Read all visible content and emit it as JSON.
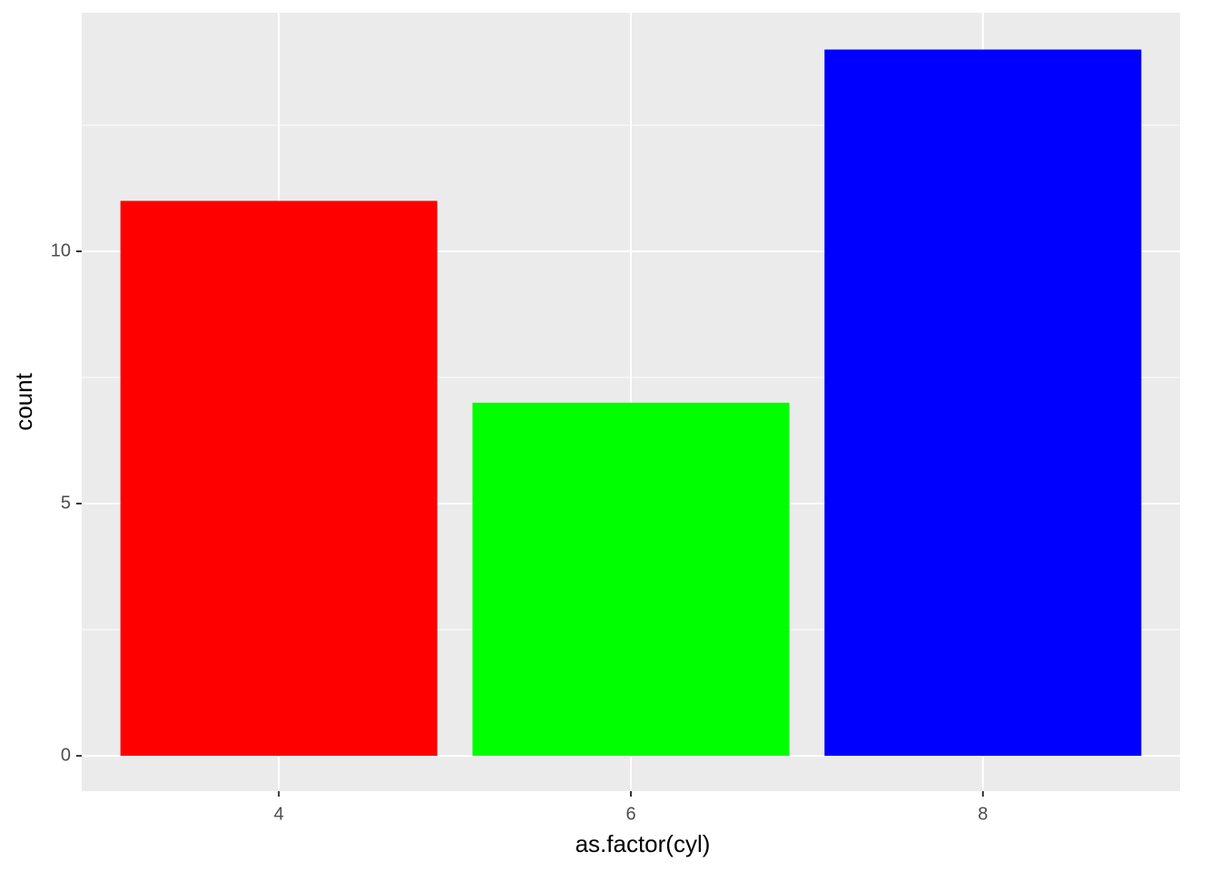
{
  "chart_data": {
    "type": "bar",
    "categories": [
      "4",
      "6",
      "8"
    ],
    "values": [
      11,
      7,
      14
    ],
    "colors": [
      "#ff0000",
      "#00ff00",
      "#0000ff"
    ],
    "x_label": "as.factor(cyl)",
    "y_label": "count",
    "ylim": [
      -0.7,
      14.73
    ],
    "yticks": [
      0,
      5,
      10
    ],
    "yminor": [
      2.5,
      7.5,
      12.5
    ],
    "grid": true
  }
}
